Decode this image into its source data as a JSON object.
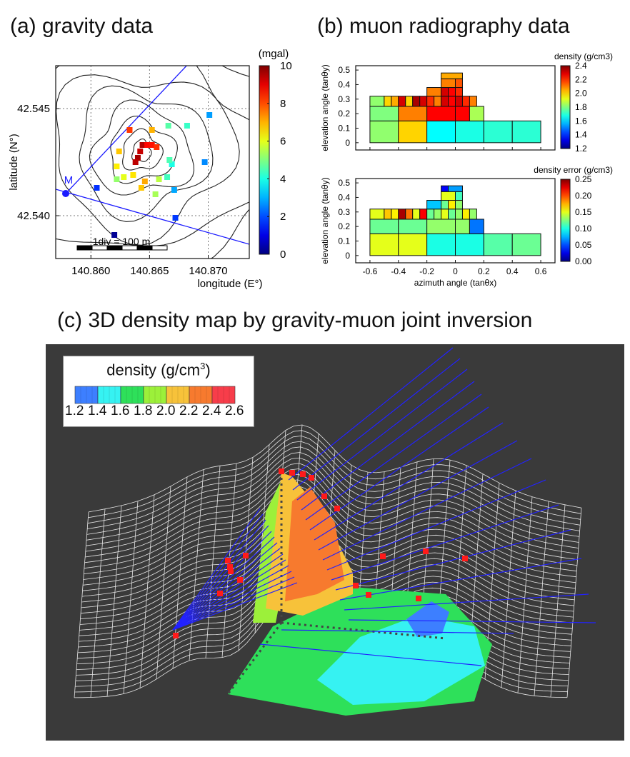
{
  "panels": {
    "a": {
      "title": "(a) gravity data"
    },
    "b": {
      "title": "(b) muon radiography data"
    },
    "c": {
      "title": "(c) 3D density map by gravity-muon joint inversion"
    }
  },
  "chart_data": [
    {
      "type": "scatter",
      "panel": "a",
      "xlabel": "longitude (E°)",
      "ylabel": "latitude (N°)",
      "x_ticks": [
        "140.860",
        "140.865",
        "140.870"
      ],
      "y_ticks": [
        "42.545",
        "42.540"
      ],
      "xlim": [
        140.857,
        140.8735
      ],
      "ylim": [
        42.538,
        42.547
      ],
      "grid": true,
      "colorbar": {
        "label": "(mgal)",
        "min": 0,
        "max": 10,
        "ticks": [
          "10",
          "8",
          "6",
          "4",
          "2",
          "0"
        ]
      },
      "scale_bar_label": "1div = 100 m",
      "marker_label": "M",
      "points": [
        {
          "x": 140.8644,
          "y": 42.5433,
          "v": 9.5
        },
        {
          "x": 140.8642,
          "y": 42.543,
          "v": 9.3
        },
        {
          "x": 140.864,
          "y": 42.5427,
          "v": 9.6
        },
        {
          "x": 140.8638,
          "y": 42.5425,
          "v": 9.4
        },
        {
          "x": 140.8648,
          "y": 42.5433,
          "v": 8.7
        },
        {
          "x": 140.8652,
          "y": 42.5433,
          "v": 8.6
        },
        {
          "x": 140.8656,
          "y": 42.5432,
          "v": 8.3
        },
        {
          "x": 140.8633,
          "y": 42.544,
          "v": 8.2
        },
        {
          "x": 140.8652,
          "y": 42.544,
          "v": 7.0
        },
        {
          "x": 140.8624,
          "y": 42.543,
          "v": 6.8
        },
        {
          "x": 140.8622,
          "y": 42.5423,
          "v": 6.4
        },
        {
          "x": 140.8628,
          "y": 42.5418,
          "v": 6.0
        },
        {
          "x": 140.8636,
          "y": 42.5419,
          "v": 6.5
        },
        {
          "x": 140.8643,
          "y": 42.5413,
          "v": 6.8
        },
        {
          "x": 140.8646,
          "y": 42.5416,
          "v": 7.1
        },
        {
          "x": 140.8622,
          "y": 42.5417,
          "v": 5.2
        },
        {
          "x": 140.8658,
          "y": 42.5417,
          "v": 5.6
        },
        {
          "x": 140.8655,
          "y": 42.541,
          "v": 5.4
        },
        {
          "x": 140.8665,
          "y": 42.5418,
          "v": 4.4
        },
        {
          "x": 140.8669,
          "y": 42.5424,
          "v": 4.0
        },
        {
          "x": 140.8667,
          "y": 42.5426,
          "v": 4.5
        },
        {
          "x": 140.8666,
          "y": 42.5442,
          "v": 4.6
        },
        {
          "x": 140.8682,
          "y": 42.5442,
          "v": 4.3
        },
        {
          "x": 140.8701,
          "y": 42.5447,
          "v": 2.8
        },
        {
          "x": 140.8697,
          "y": 42.5425,
          "v": 2.6
        },
        {
          "x": 140.8671,
          "y": 42.5412,
          "v": 2.9
        },
        {
          "x": 140.8672,
          "y": 42.5399,
          "v": 1.8
        },
        {
          "x": 140.8605,
          "y": 42.5413,
          "v": 1.7
        },
        {
          "x": 140.862,
          "y": 42.5391,
          "v": 0.2
        }
      ]
    },
    {
      "type": "heatmap",
      "panel": "b-top",
      "ylabel": "elevation angle (tanθy)",
      "y_ticks": [
        "0.5",
        "0.4",
        "0.3",
        "0.2",
        "0.1",
        "0"
      ],
      "xlim": [
        -0.7,
        0.7
      ],
      "ylim": [
        -0.05,
        0.53
      ],
      "colorbar": {
        "label": "density (g/cm3)",
        "min": 1.2,
        "max": 2.4,
        "ticks": [
          "2.4",
          "2.2",
          "2.0",
          "1.8",
          "1.6",
          "1.4",
          "1.2"
        ]
      },
      "cells": [
        {
          "x0": -0.6,
          "x1": -0.4,
          "y0": 0.0,
          "y1": 0.15,
          "v": 1.82
        },
        {
          "x0": -0.4,
          "x1": -0.2,
          "y0": 0.0,
          "y1": 0.15,
          "v": 2.0
        },
        {
          "x0": -0.2,
          "x1": 0.0,
          "y0": 0.0,
          "y1": 0.15,
          "v": 1.65
        },
        {
          "x0": 0.0,
          "x1": 0.2,
          "y0": 0.0,
          "y1": 0.15,
          "v": 1.68
        },
        {
          "x0": 0.2,
          "x1": 0.4,
          "y0": 0.0,
          "y1": 0.15,
          "v": 1.7
        },
        {
          "x0": 0.4,
          "x1": 0.6,
          "y0": 0.0,
          "y1": 0.15,
          "v": 1.7
        },
        {
          "x0": -0.6,
          "x1": -0.4,
          "y0": 0.15,
          "y1": 0.25,
          "v": 1.8
        },
        {
          "x0": -0.4,
          "x1": -0.2,
          "y0": 0.15,
          "y1": 0.25,
          "v": 2.1
        },
        {
          "x0": -0.2,
          "x1": 0.0,
          "y0": 0.15,
          "y1": 0.25,
          "v": 2.25
        },
        {
          "x0": 0.0,
          "x1": 0.1,
          "y0": 0.15,
          "y1": 0.25,
          "v": 2.25
        },
        {
          "x0": 0.1,
          "x1": 0.2,
          "y0": 0.15,
          "y1": 0.25,
          "v": 1.85
        },
        {
          "x0": -0.6,
          "x1": -0.5,
          "y0": 0.25,
          "y1": 0.32,
          "v": 1.82
        },
        {
          "x0": -0.5,
          "x1": -0.45,
          "y0": 0.25,
          "y1": 0.32,
          "v": 2.0
        },
        {
          "x0": -0.45,
          "x1": -0.4,
          "y0": 0.25,
          "y1": 0.32,
          "v": 2.05
        },
        {
          "x0": -0.4,
          "x1": -0.35,
          "y0": 0.25,
          "y1": 0.32,
          "v": 2.3
        },
        {
          "x0": -0.35,
          "x1": -0.3,
          "y0": 0.25,
          "y1": 0.32,
          "v": 2.0
        },
        {
          "x0": -0.3,
          "x1": -0.25,
          "y0": 0.25,
          "y1": 0.32,
          "v": 2.35
        },
        {
          "x0": -0.25,
          "x1": -0.2,
          "y0": 0.25,
          "y1": 0.32,
          "v": 2.3
        },
        {
          "x0": -0.2,
          "x1": -0.15,
          "y0": 0.25,
          "y1": 0.32,
          "v": 2.2
        },
        {
          "x0": -0.15,
          "x1": -0.1,
          "y0": 0.25,
          "y1": 0.32,
          "v": 2.1
        },
        {
          "x0": -0.1,
          "x1": -0.05,
          "y0": 0.25,
          "y1": 0.32,
          "v": 2.3
        },
        {
          "x0": -0.05,
          "x1": 0.0,
          "y0": 0.25,
          "y1": 0.32,
          "v": 2.25
        },
        {
          "x0": 0.0,
          "x1": 0.05,
          "y0": 0.25,
          "y1": 0.32,
          "v": 2.3
        },
        {
          "x0": 0.05,
          "x1": 0.1,
          "y0": 0.25,
          "y1": 0.32,
          "v": 2.2
        },
        {
          "x0": 0.1,
          "x1": 0.15,
          "y0": 0.25,
          "y1": 0.32,
          "v": 2.1
        },
        {
          "x0": -0.2,
          "x1": -0.1,
          "y0": 0.32,
          "y1": 0.38,
          "v": 2.1
        },
        {
          "x0": -0.1,
          "x1": -0.05,
          "y0": 0.32,
          "y1": 0.38,
          "v": 2.3
        },
        {
          "x0": -0.05,
          "x1": 0.0,
          "y0": 0.32,
          "y1": 0.38,
          "v": 2.25
        },
        {
          "x0": 0.0,
          "x1": 0.05,
          "y0": 0.32,
          "y1": 0.38,
          "v": 2.2
        },
        {
          "x0": -0.1,
          "x1": 0.0,
          "y0": 0.38,
          "y1": 0.44,
          "v": 2.1
        },
        {
          "x0": 0.0,
          "x1": 0.05,
          "y0": 0.38,
          "y1": 0.44,
          "v": 2.15
        },
        {
          "x0": -0.1,
          "x1": 0.05,
          "y0": 0.44,
          "y1": 0.48,
          "v": 2.05
        }
      ]
    },
    {
      "type": "heatmap",
      "panel": "b-bottom",
      "xlabel": "azimuth angle (tanθx)",
      "ylabel": "elevation angle (tanθy)",
      "x_ticks": [
        "-0.6",
        "-0.4",
        "-0.2",
        "0",
        "0.2",
        "0.4",
        "0.6"
      ],
      "y_ticks": [
        "0.5",
        "0.4",
        "0.3",
        "0.2",
        "0.1",
        "0"
      ],
      "xlim": [
        -0.7,
        0.7
      ],
      "ylim": [
        -0.05,
        0.53
      ],
      "colorbar": {
        "label": "density error (g/cm3)",
        "min": 0.0,
        "max": 0.25,
        "ticks": [
          "0.25",
          "0.20",
          "0.15",
          "0.10",
          "0.05",
          "0.00"
        ]
      },
      "cells": [
        {
          "x0": -0.6,
          "x1": -0.4,
          "y0": 0.0,
          "y1": 0.15,
          "v": 0.15
        },
        {
          "x0": -0.4,
          "x1": -0.2,
          "y0": 0.0,
          "y1": 0.15,
          "v": 0.15
        },
        {
          "x0": -0.2,
          "x1": 0.0,
          "y0": 0.0,
          "y1": 0.15,
          "v": 0.1
        },
        {
          "x0": 0.0,
          "x1": 0.2,
          "y0": 0.0,
          "y1": 0.15,
          "v": 0.1
        },
        {
          "x0": 0.2,
          "x1": 0.4,
          "y0": 0.0,
          "y1": 0.15,
          "v": 0.115
        },
        {
          "x0": 0.4,
          "x1": 0.6,
          "y0": 0.0,
          "y1": 0.15,
          "v": 0.12
        },
        {
          "x0": -0.6,
          "x1": -0.4,
          "y0": 0.15,
          "y1": 0.25,
          "v": 0.12
        },
        {
          "x0": -0.4,
          "x1": -0.2,
          "y0": 0.15,
          "y1": 0.25,
          "v": 0.12
        },
        {
          "x0": -0.2,
          "x1": 0.0,
          "y0": 0.15,
          "y1": 0.25,
          "v": 0.13
        },
        {
          "x0": 0.0,
          "x1": 0.1,
          "y0": 0.15,
          "y1": 0.25,
          "v": 0.13
        },
        {
          "x0": 0.1,
          "x1": 0.2,
          "y0": 0.15,
          "y1": 0.25,
          "v": 0.06
        },
        {
          "x0": -0.6,
          "x1": -0.5,
          "y0": 0.25,
          "y1": 0.32,
          "v": 0.15
        },
        {
          "x0": -0.5,
          "x1": -0.45,
          "y0": 0.25,
          "y1": 0.32,
          "v": 0.17
        },
        {
          "x0": -0.45,
          "x1": -0.4,
          "y0": 0.25,
          "y1": 0.32,
          "v": 0.16
        },
        {
          "x0": -0.4,
          "x1": -0.35,
          "y0": 0.25,
          "y1": 0.32,
          "v": 0.24
        },
        {
          "x0": -0.35,
          "x1": -0.3,
          "y0": 0.25,
          "y1": 0.32,
          "v": 0.19
        },
        {
          "x0": -0.3,
          "x1": -0.25,
          "y0": 0.25,
          "y1": 0.32,
          "v": 0.15
        },
        {
          "x0": -0.25,
          "x1": -0.2,
          "y0": 0.25,
          "y1": 0.32,
          "v": 0.22
        },
        {
          "x0": -0.2,
          "x1": -0.15,
          "y0": 0.25,
          "y1": 0.32,
          "v": 0.12
        },
        {
          "x0": -0.15,
          "x1": -0.1,
          "y0": 0.25,
          "y1": 0.32,
          "v": 0.13
        },
        {
          "x0": -0.1,
          "x1": -0.05,
          "y0": 0.25,
          "y1": 0.32,
          "v": 0.15
        },
        {
          "x0": -0.05,
          "x1": 0.0,
          "y0": 0.25,
          "y1": 0.32,
          "v": 0.12
        },
        {
          "x0": 0.0,
          "x1": 0.05,
          "y0": 0.25,
          "y1": 0.32,
          "v": 0.13
        },
        {
          "x0": 0.05,
          "x1": 0.1,
          "y0": 0.25,
          "y1": 0.32,
          "v": 0.16
        },
        {
          "x0": 0.1,
          "x1": 0.15,
          "y0": 0.25,
          "y1": 0.32,
          "v": 0.13
        },
        {
          "x0": -0.2,
          "x1": -0.1,
          "y0": 0.32,
          "y1": 0.38,
          "v": 0.08
        },
        {
          "x0": -0.1,
          "x1": -0.05,
          "y0": 0.32,
          "y1": 0.38,
          "v": 0.12
        },
        {
          "x0": -0.05,
          "x1": 0.0,
          "y0": 0.32,
          "y1": 0.38,
          "v": 0.16
        },
        {
          "x0": 0.0,
          "x1": 0.05,
          "y0": 0.32,
          "y1": 0.38,
          "v": 0.13
        },
        {
          "x0": -0.1,
          "x1": 0.0,
          "y0": 0.38,
          "y1": 0.44,
          "v": 0.15
        },
        {
          "x0": 0.0,
          "x1": 0.05,
          "y0": 0.38,
          "y1": 0.44,
          "v": 0.11
        },
        {
          "x0": -0.1,
          "x1": -0.05,
          "y0": 0.44,
          "y1": 0.48,
          "v": 0.03
        },
        {
          "x0": -0.05,
          "x1": 0.05,
          "y0": 0.44,
          "y1": 0.48,
          "v": 0.07
        }
      ]
    },
    {
      "type": "other",
      "panel": "c",
      "legend_title": "density (g/cm",
      "legend_title_sup": "3",
      "legend_title_end": ")",
      "legend_ticks": [
        "1.2",
        "1.4",
        "1.6",
        "1.8",
        "2.0",
        "2.2",
        "2.4",
        "2.6"
      ],
      "legend_colors": [
        "#3d7fff",
        "#36f2f2",
        "#2ee05a",
        "#9cf03a",
        "#f7c23a",
        "#f77a2e",
        "#f73d4a"
      ],
      "background": "#3a3a3a"
    }
  ]
}
